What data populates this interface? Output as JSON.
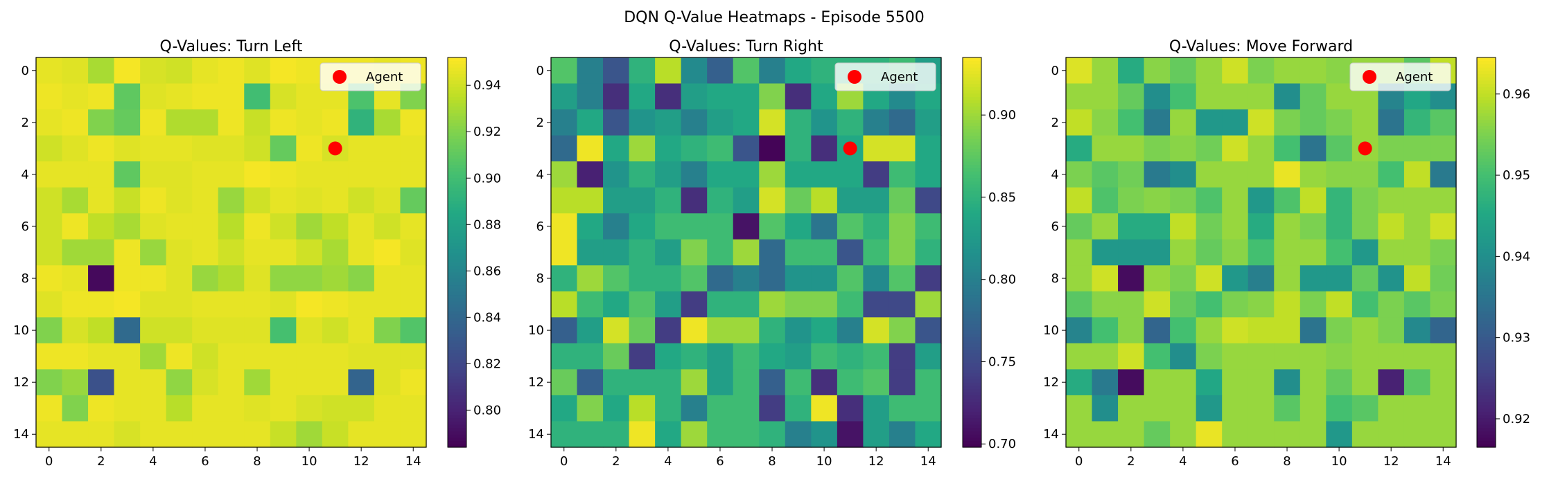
{
  "figure": {
    "suptitle": "DQN Q-Value Heatmaps - Episode 5500"
  },
  "colormap": "viridis",
  "chart_data": [
    {
      "type": "heatmap",
      "title": "Q-Values: Turn Left",
      "grid_size": 15,
      "x_ticks": [
        "0",
        "2",
        "4",
        "6",
        "8",
        "10",
        "12",
        "14"
      ],
      "y_ticks": [
        "0",
        "2",
        "4",
        "6",
        "8",
        "10",
        "12",
        "14"
      ],
      "colorbar": {
        "min": 0.784,
        "max": 0.952,
        "ticks": [
          0.8,
          0.82,
          0.84,
          0.86,
          0.88,
          0.9,
          0.92,
          0.94
        ],
        "tick_labels": [
          "0.80",
          "0.82",
          "0.84",
          "0.86",
          "0.88",
          "0.90",
          "0.92",
          "0.94"
        ]
      },
      "agent": {
        "x": 11,
        "y": 3,
        "label": "Agent",
        "color": "#ff0000"
      },
      "legend_position": "upper right",
      "values": [
        [
          0.946,
          0.944,
          0.93,
          0.95,
          0.942,
          0.94,
          0.946,
          0.948,
          0.944,
          0.95,
          0.948,
          0.948,
          0.948,
          0.946,
          0.948
        ],
        [
          0.948,
          0.946,
          0.948,
          0.91,
          0.944,
          0.946,
          0.948,
          0.948,
          0.9,
          0.942,
          0.946,
          0.946,
          0.904,
          0.946,
          0.92
        ],
        [
          0.946,
          0.948,
          0.92,
          0.912,
          0.948,
          0.932,
          0.932,
          0.948,
          0.938,
          0.948,
          0.946,
          0.948,
          0.892,
          0.93,
          0.948
        ],
        [
          0.94,
          0.944,
          0.948,
          0.944,
          0.946,
          0.946,
          0.944,
          0.944,
          0.94,
          0.912,
          0.948,
          0.942,
          0.946,
          0.946,
          0.946
        ],
        [
          0.946,
          0.946,
          0.946,
          0.91,
          0.944,
          0.944,
          0.946,
          0.946,
          0.95,
          0.948,
          0.946,
          0.946,
          0.946,
          0.946,
          0.946
        ],
        [
          0.94,
          0.93,
          0.946,
          0.938,
          0.948,
          0.944,
          0.946,
          0.926,
          0.94,
          0.946,
          0.944,
          0.946,
          0.94,
          0.944,
          0.912
        ],
        [
          0.94,
          0.948,
          0.936,
          0.93,
          0.944,
          0.946,
          0.946,
          0.934,
          0.948,
          0.94,
          0.928,
          0.936,
          0.946,
          0.94,
          0.946
        ],
        [
          0.94,
          0.928,
          0.928,
          0.948,
          0.926,
          0.944,
          0.946,
          0.94,
          0.946,
          0.946,
          0.94,
          0.93,
          0.946,
          0.95,
          0.944
        ],
        [
          0.948,
          0.946,
          0.788,
          0.948,
          0.948,
          0.944,
          0.926,
          0.932,
          0.944,
          0.924,
          0.924,
          0.928,
          0.922,
          0.946,
          0.946
        ],
        [
          0.944,
          0.948,
          0.948,
          0.95,
          0.944,
          0.944,
          0.946,
          0.946,
          0.946,
          0.944,
          0.95,
          0.948,
          0.946,
          0.946,
          0.946
        ],
        [
          0.92,
          0.942,
          0.936,
          0.842,
          0.94,
          0.94,
          0.944,
          0.944,
          0.944,
          0.902,
          0.944,
          0.94,
          0.946,
          0.92,
          0.906
        ],
        [
          0.948,
          0.948,
          0.946,
          0.946,
          0.928,
          0.948,
          0.94,
          0.946,
          0.946,
          0.946,
          0.946,
          0.946,
          0.944,
          0.944,
          0.944
        ],
        [
          0.92,
          0.926,
          0.826,
          0.946,
          0.946,
          0.924,
          0.942,
          0.946,
          0.928,
          0.946,
          0.946,
          0.946,
          0.838,
          0.944,
          0.948
        ],
        [
          0.948,
          0.92,
          0.948,
          0.946,
          0.946,
          0.934,
          0.946,
          0.946,
          0.944,
          0.946,
          0.942,
          0.94,
          0.94,
          0.946,
          0.946
        ],
        [
          0.946,
          0.946,
          0.946,
          0.942,
          0.946,
          0.946,
          0.946,
          0.946,
          0.946,
          0.938,
          0.928,
          0.938,
          0.946,
          0.946,
          0.946
        ]
      ]
    },
    {
      "type": "heatmap",
      "title": "Q-Values: Turn Right",
      "grid_size": 15,
      "x_ticks": [
        "0",
        "2",
        "4",
        "6",
        "8",
        "10",
        "12",
        "14"
      ],
      "y_ticks": [
        "0",
        "2",
        "4",
        "6",
        "8",
        "10",
        "12",
        "14"
      ],
      "colorbar": {
        "min": 0.698,
        "max": 0.935,
        "ticks": [
          0.7,
          0.75,
          0.8,
          0.85,
          0.9
        ],
        "tick_labels": [
          "0.70",
          "0.75",
          "0.80",
          "0.85",
          "0.90"
        ]
      },
      "agent": {
        "x": 11,
        "y": 3,
        "label": "Agent",
        "color": "#ff0000"
      },
      "legend_position": "upper right",
      "values": [
        [
          0.87,
          0.8,
          0.76,
          0.85,
          0.91,
          0.81,
          0.77,
          0.87,
          0.8,
          0.84,
          0.85,
          0.85,
          0.85,
          0.86,
          0.83
        ],
        [
          0.83,
          0.8,
          0.73,
          0.84,
          0.73,
          0.83,
          0.84,
          0.84,
          0.89,
          0.73,
          0.84,
          0.9,
          0.84,
          0.81,
          0.84
        ],
        [
          0.8,
          0.84,
          0.76,
          0.82,
          0.83,
          0.8,
          0.83,
          0.84,
          0.92,
          0.85,
          0.82,
          0.85,
          0.8,
          0.78,
          0.83
        ],
        [
          0.78,
          0.93,
          0.84,
          0.9,
          0.84,
          0.85,
          0.86,
          0.76,
          0.7,
          0.85,
          0.73,
          0.84,
          0.92,
          0.92,
          0.84
        ],
        [
          0.9,
          0.72,
          0.82,
          0.85,
          0.83,
          0.8,
          0.84,
          0.84,
          0.9,
          0.84,
          0.84,
          0.84,
          0.74,
          0.86,
          0.84
        ],
        [
          0.91,
          0.91,
          0.83,
          0.83,
          0.85,
          0.73,
          0.85,
          0.83,
          0.92,
          0.88,
          0.91,
          0.83,
          0.83,
          0.88,
          0.75
        ],
        [
          0.93,
          0.84,
          0.8,
          0.84,
          0.86,
          0.86,
          0.86,
          0.71,
          0.87,
          0.84,
          0.79,
          0.87,
          0.85,
          0.89,
          0.86
        ],
        [
          0.93,
          0.83,
          0.83,
          0.85,
          0.83,
          0.89,
          0.86,
          0.9,
          0.78,
          0.86,
          0.86,
          0.76,
          0.86,
          0.89,
          0.85
        ],
        [
          0.85,
          0.9,
          0.87,
          0.85,
          0.85,
          0.87,
          0.78,
          0.8,
          0.78,
          0.82,
          0.82,
          0.87,
          0.81,
          0.87,
          0.74
        ],
        [
          0.91,
          0.86,
          0.84,
          0.87,
          0.83,
          0.74,
          0.85,
          0.85,
          0.9,
          0.89,
          0.89,
          0.86,
          0.75,
          0.75,
          0.9
        ],
        [
          0.77,
          0.83,
          0.92,
          0.88,
          0.74,
          0.93,
          0.9,
          0.9,
          0.85,
          0.82,
          0.84,
          0.8,
          0.92,
          0.89,
          0.76
        ],
        [
          0.85,
          0.85,
          0.88,
          0.74,
          0.84,
          0.85,
          0.83,
          0.86,
          0.84,
          0.83,
          0.86,
          0.85,
          0.86,
          0.74,
          0.83
        ],
        [
          0.88,
          0.77,
          0.85,
          0.85,
          0.85,
          0.9,
          0.83,
          0.86,
          0.77,
          0.86,
          0.73,
          0.86,
          0.87,
          0.74,
          0.86
        ],
        [
          0.84,
          0.89,
          0.84,
          0.91,
          0.85,
          0.8,
          0.86,
          0.86,
          0.74,
          0.85,
          0.93,
          0.73,
          0.83,
          0.86,
          0.86
        ],
        [
          0.85,
          0.85,
          0.85,
          0.93,
          0.84,
          0.9,
          0.86,
          0.86,
          0.85,
          0.8,
          0.82,
          0.71,
          0.83,
          0.8,
          0.84
        ]
      ]
    },
    {
      "type": "heatmap",
      "title": "Q-Values: Move Forward",
      "grid_size": 15,
      "x_ticks": [
        "0",
        "2",
        "4",
        "6",
        "8",
        "10",
        "12",
        "14"
      ],
      "y_ticks": [
        "0",
        "2",
        "4",
        "6",
        "8",
        "10",
        "12",
        "14"
      ],
      "colorbar": {
        "min": 0.9165,
        "max": 0.9645,
        "ticks": [
          0.92,
          0.93,
          0.94,
          0.95,
          0.96
        ],
        "tick_labels": [
          "0.92",
          "0.93",
          "0.94",
          "0.95",
          "0.96"
        ]
      },
      "agent": {
        "x": 11,
        "y": 3,
        "label": "Agent",
        "color": "#ff0000"
      },
      "legend_position": "upper right",
      "values": [
        [
          0.962,
          0.957,
          0.946,
          0.956,
          0.953,
          0.957,
          0.961,
          0.955,
          0.957,
          0.957,
          0.956,
          0.957,
          0.957,
          0.952,
          0.96
        ],
        [
          0.957,
          0.957,
          0.953,
          0.94,
          0.95,
          0.957,
          0.957,
          0.957,
          0.94,
          0.953,
          0.957,
          0.957,
          0.938,
          0.945,
          0.94
        ],
        [
          0.96,
          0.956,
          0.95,
          0.936,
          0.957,
          0.942,
          0.942,
          0.961,
          0.955,
          0.953,
          0.955,
          0.957,
          0.935,
          0.948,
          0.952
        ],
        [
          0.946,
          0.957,
          0.957,
          0.955,
          0.956,
          0.954,
          0.961,
          0.957,
          0.95,
          0.935,
          0.952,
          0.957,
          0.955,
          0.955,
          0.955
        ],
        [
          0.955,
          0.952,
          0.954,
          0.936,
          0.94,
          0.957,
          0.957,
          0.957,
          0.963,
          0.957,
          0.956,
          0.956,
          0.95,
          0.96,
          0.936
        ],
        [
          0.96,
          0.951,
          0.955,
          0.956,
          0.955,
          0.951,
          0.957,
          0.942,
          0.951,
          0.96,
          0.948,
          0.955,
          0.957,
          0.957,
          0.957
        ],
        [
          0.953,
          0.957,
          0.946,
          0.946,
          0.96,
          0.954,
          0.957,
          0.946,
          0.957,
          0.955,
          0.948,
          0.955,
          0.96,
          0.957,
          0.961
        ],
        [
          0.957,
          0.942,
          0.942,
          0.942,
          0.957,
          0.953,
          0.956,
          0.95,
          0.957,
          0.957,
          0.95,
          0.942,
          0.957,
          0.957,
          0.955
        ],
        [
          0.957,
          0.961,
          0.918,
          0.957,
          0.955,
          0.961,
          0.942,
          0.937,
          0.957,
          0.942,
          0.942,
          0.953,
          0.941,
          0.96,
          0.954
        ],
        [
          0.952,
          0.956,
          0.956,
          0.961,
          0.953,
          0.95,
          0.955,
          0.956,
          0.96,
          0.955,
          0.96,
          0.95,
          0.955,
          0.952,
          0.955
        ],
        [
          0.938,
          0.95,
          0.956,
          0.932,
          0.95,
          0.957,
          0.961,
          0.96,
          0.96,
          0.935,
          0.955,
          0.957,
          0.955,
          0.939,
          0.932
        ],
        [
          0.957,
          0.957,
          0.961,
          0.95,
          0.94,
          0.955,
          0.957,
          0.957,
          0.957,
          0.957,
          0.956,
          0.957,
          0.957,
          0.957,
          0.957
        ],
        [
          0.946,
          0.936,
          0.918,
          0.957,
          0.957,
          0.945,
          0.957,
          0.957,
          0.94,
          0.957,
          0.953,
          0.957,
          0.921,
          0.952,
          0.957
        ],
        [
          0.957,
          0.94,
          0.957,
          0.957,
          0.957,
          0.942,
          0.957,
          0.957,
          0.952,
          0.957,
          0.95,
          0.952,
          0.957,
          0.957,
          0.957
        ],
        [
          0.957,
          0.957,
          0.957,
          0.953,
          0.957,
          0.963,
          0.957,
          0.957,
          0.957,
          0.957,
          0.942,
          0.957,
          0.957,
          0.957,
          0.957
        ]
      ]
    }
  ]
}
